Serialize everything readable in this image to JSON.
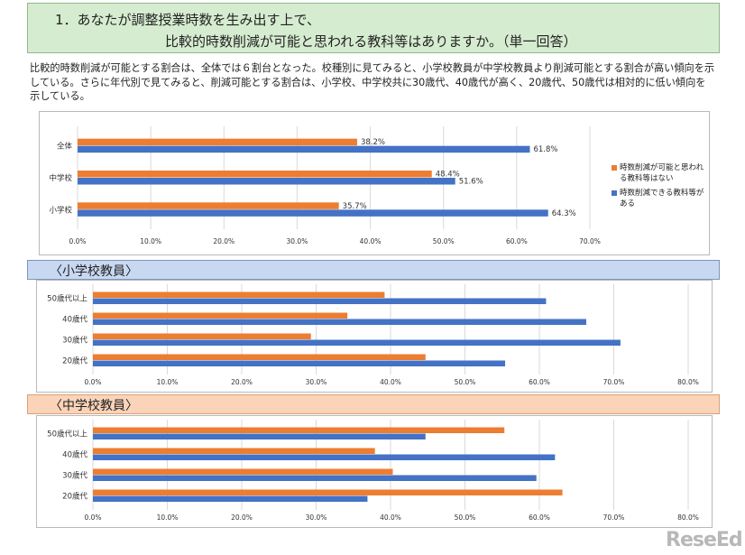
{
  "title": {
    "line1": "1．あなたが調整授業時数を生み出す上で、",
    "line2": "比較的時数削減が可能と思われる教科等はありますか。（単一回答）"
  },
  "description": "比較的時数削減が可能とする割合は、全体では６割台となった。校種別に見てみると、小学校教員が中学校教員より削減可能とする割合が高い傾向を示している。さらに年代別で見てみると、削減可能とする割合は、小学校、中学校共に30歳代、40歳代が高く、20歳代、50歳代は相対的に低い傾向を示している。",
  "colors": {
    "orange": "#ed7d31",
    "blue": "#4472c4"
  },
  "legend": [
    {
      "label": "時数削減が可能と思われる教科等はない",
      "color": "#ed7d31"
    },
    {
      "label": "時数削減できる教科等がある",
      "color": "#4472c4"
    }
  ],
  "sections": {
    "elementary": "〈小学校教員〉",
    "junior_high": "〈中学校教員〉"
  },
  "watermark": "ReseEd",
  "chart_data": [
    {
      "type": "bar",
      "orientation": "horizontal",
      "categories": [
        "全体",
        "中学校",
        "小学校"
      ],
      "series": [
        {
          "name": "時数削減が可能と思われる教科等はない",
          "values": [
            38.2,
            48.4,
            35.7
          ]
        },
        {
          "name": "時数削減できる教科等がある",
          "values": [
            61.8,
            51.6,
            64.3
          ]
        }
      ],
      "data_labels": [
        [
          "38.2%",
          "48.4%",
          "35.7%"
        ],
        [
          "61.8%",
          "51.6%",
          "64.3%"
        ]
      ],
      "xlim": [
        0,
        70
      ],
      "xticks": [
        "0.0%",
        "10.0%",
        "20.0%",
        "30.0%",
        "40.0%",
        "50.0%",
        "60.0%",
        "70.0%"
      ],
      "legend_position": "right",
      "grid": true
    },
    {
      "type": "bar",
      "orientation": "horizontal",
      "categories": [
        "50歳代以上",
        "40歳代",
        "30歳代",
        "20歳代"
      ],
      "series": [
        {
          "values": [
            39.2,
            34.2,
            29.3,
            44.7
          ]
        },
        {
          "values": [
            60.9,
            66.3,
            70.9,
            55.4
          ]
        }
      ],
      "xlim": [
        0,
        80
      ],
      "xticks": [
        "0.0%",
        "10.0%",
        "20.0%",
        "30.0%",
        "40.0%",
        "50.0%",
        "60.0%",
        "70.0%",
        "80.0%"
      ],
      "grid": true
    },
    {
      "type": "bar",
      "orientation": "horizontal",
      "categories": [
        "50歳代以上",
        "40歳代",
        "30歳代",
        "20歳代"
      ],
      "series": [
        {
          "values": [
            55.3,
            37.9,
            40.3,
            63.1
          ]
        },
        {
          "values": [
            44.7,
            62.1,
            59.6,
            36.9
          ]
        }
      ],
      "xlim": [
        0,
        80
      ],
      "xticks": [
        "0.0%",
        "10.0%",
        "20.0%",
        "30.0%",
        "40.0%",
        "50.0%",
        "60.0%",
        "70.0%",
        "80.0%"
      ],
      "grid": true
    }
  ]
}
